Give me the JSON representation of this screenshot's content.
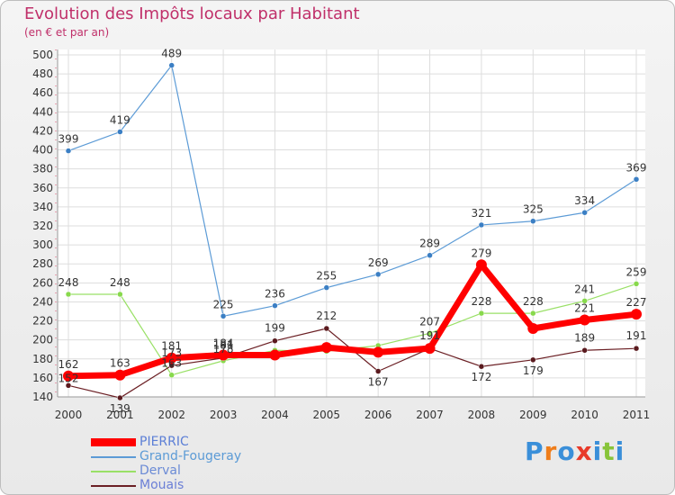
{
  "title": "Evolution des Impôts locaux par Habitant",
  "subtitle": "(en € et par an)",
  "logo": "Proxiti",
  "chart_data": {
    "type": "line",
    "title": "Evolution des Impôts locaux par Habitant",
    "subtitle": "(en € et par an)",
    "xlabel": "",
    "ylabel": "",
    "categories": [
      "2000",
      "2001",
      "2002",
      "2003",
      "2004",
      "2005",
      "2006",
      "2007",
      "2008",
      "2009",
      "2010",
      "2011"
    ],
    "ylim": [
      140,
      500
    ],
    "yticks": [
      140,
      160,
      180,
      200,
      220,
      240,
      260,
      280,
      300,
      320,
      340,
      360,
      380,
      400,
      420,
      440,
      460,
      480,
      500
    ],
    "legend_position": "bottom-left",
    "series": [
      {
        "name": "PIERRIC",
        "color": "#ff0000",
        "values": [
          162,
          163,
          181,
          184,
          184,
          192,
          187,
          191,
          279,
          212,
          221,
          227
        ]
      },
      {
        "name": "Grand-Fougeray",
        "color": "#5c9bd6",
        "values": [
          399,
          419,
          489,
          225,
          236,
          255,
          269,
          289,
          321,
          325,
          334,
          369
        ]
      },
      {
        "name": "Derval",
        "color": "#99e066",
        "values": [
          248,
          248,
          163,
          178,
          189,
          188,
          194,
          207,
          228,
          228,
          241,
          259
        ]
      },
      {
        "name": "Mouais",
        "color": "#6b1f24",
        "values": [
          152,
          139,
          173,
          181,
          199,
          212,
          167,
          191,
          172,
          179,
          189,
          191
        ]
      }
    ],
    "labels": {
      "PIERRIC": [
        "162",
        "163",
        "181",
        "184",
        "",
        "",
        "",
        "",
        "279",
        "",
        "221",
        "227"
      ],
      "Grand-Fougeray": [
        "399",
        "419",
        "489",
        "225",
        "236",
        "255",
        "269",
        "289",
        "321",
        "325",
        "334",
        "369"
      ],
      "Derval": [
        "248",
        "248",
        "163",
        "178",
        "",
        "",
        "",
        "207",
        "228",
        "228",
        "241",
        "259"
      ],
      "Mouais": [
        "152",
        "139",
        "173",
        "181",
        "199",
        "212",
        "167",
        "191",
        "172",
        "179",
        "189",
        "191"
      ]
    }
  }
}
